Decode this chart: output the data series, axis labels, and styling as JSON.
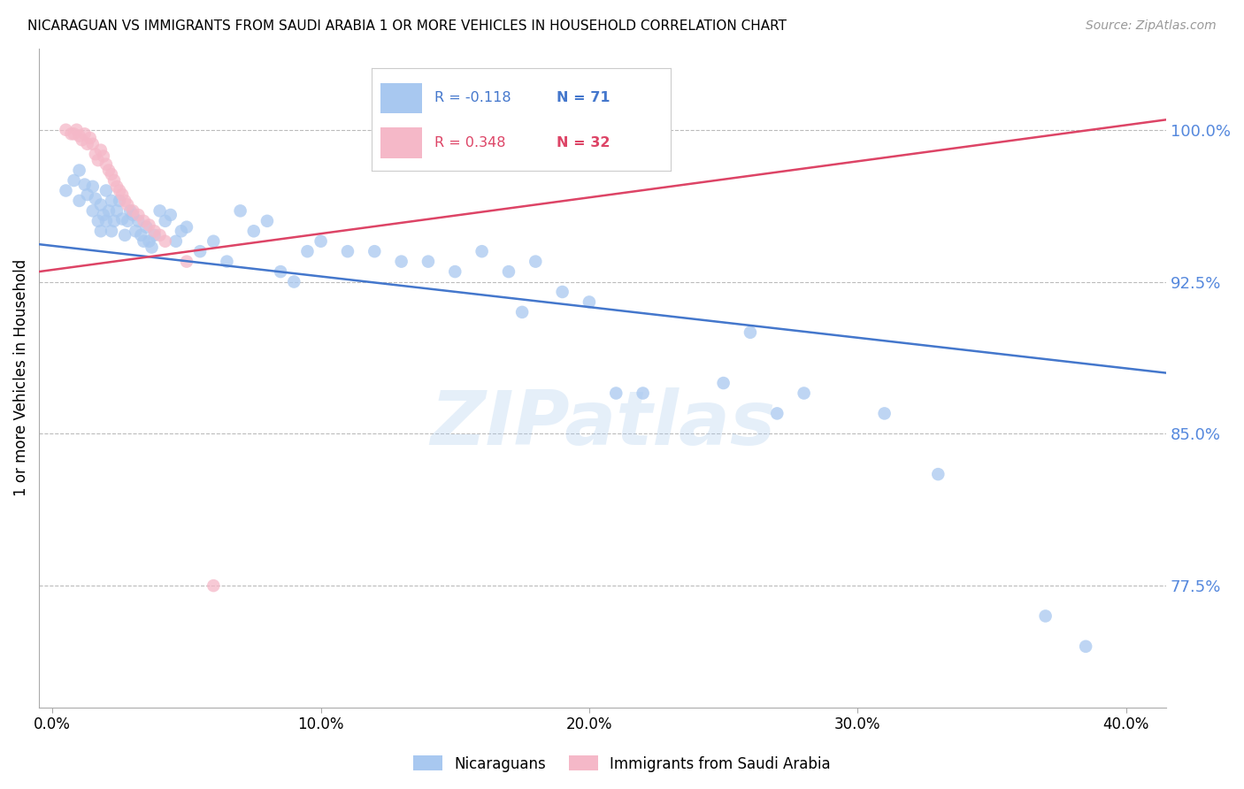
{
  "title": "NICARAGUAN VS IMMIGRANTS FROM SAUDI ARABIA 1 OR MORE VEHICLES IN HOUSEHOLD CORRELATION CHART",
  "source": "Source: ZipAtlas.com",
  "ylabel": "1 or more Vehicles in Household",
  "xlabel_ticks": [
    "0.0%",
    "10.0%",
    "20.0%",
    "30.0%",
    "40.0%"
  ],
  "xlabel_vals": [
    0.0,
    0.1,
    0.2,
    0.3,
    0.4
  ],
  "ylabel_ticks": [
    "77.5%",
    "85.0%",
    "92.5%",
    "100.0%"
  ],
  "ylabel_vals": [
    0.775,
    0.85,
    0.925,
    1.0
  ],
  "ylim": [
    0.715,
    1.04
  ],
  "xlim": [
    -0.005,
    0.415
  ],
  "blue_color": "#A8C8F0",
  "pink_color": "#F5B8C8",
  "blue_line_color": "#4477CC",
  "pink_line_color": "#DD4466",
  "R_blue": -0.118,
  "N_blue": 71,
  "R_pink": 0.348,
  "N_pink": 32,
  "legend_label_blue": "Nicaraguans",
  "legend_label_pink": "Immigrants from Saudi Arabia",
  "watermark": "ZIPatlas",
  "blue_x": [
    0.005,
    0.008,
    0.01,
    0.01,
    0.012,
    0.013,
    0.015,
    0.015,
    0.016,
    0.017,
    0.018,
    0.018,
    0.019,
    0.02,
    0.02,
    0.021,
    0.022,
    0.022,
    0.023,
    0.024,
    0.025,
    0.026,
    0.027,
    0.028,
    0.029,
    0.03,
    0.031,
    0.032,
    0.033,
    0.034,
    0.035,
    0.036,
    0.037,
    0.038,
    0.04,
    0.042,
    0.044,
    0.046,
    0.048,
    0.05,
    0.055,
    0.06,
    0.065,
    0.07,
    0.075,
    0.08,
    0.085,
    0.09,
    0.095,
    0.1,
    0.11,
    0.12,
    0.13,
    0.14,
    0.15,
    0.16,
    0.17,
    0.175,
    0.18,
    0.19,
    0.2,
    0.21,
    0.22,
    0.25,
    0.26,
    0.27,
    0.28,
    0.31,
    0.33,
    0.37,
    0.385
  ],
  "blue_y": [
    0.97,
    0.975,
    0.98,
    0.965,
    0.973,
    0.968,
    0.972,
    0.96,
    0.966,
    0.955,
    0.963,
    0.95,
    0.958,
    0.97,
    0.955,
    0.96,
    0.965,
    0.95,
    0.955,
    0.96,
    0.965,
    0.956,
    0.948,
    0.955,
    0.96,
    0.958,
    0.95,
    0.955,
    0.948,
    0.945,
    0.952,
    0.945,
    0.942,
    0.948,
    0.96,
    0.955,
    0.958,
    0.945,
    0.95,
    0.952,
    0.94,
    0.945,
    0.935,
    0.96,
    0.95,
    0.955,
    0.93,
    0.925,
    0.94,
    0.945,
    0.94,
    0.94,
    0.935,
    0.935,
    0.93,
    0.94,
    0.93,
    0.91,
    0.935,
    0.92,
    0.915,
    0.87,
    0.87,
    0.875,
    0.9,
    0.86,
    0.87,
    0.86,
    0.83,
    0.76,
    0.745
  ],
  "pink_x": [
    0.005,
    0.007,
    0.008,
    0.009,
    0.01,
    0.011,
    0.012,
    0.013,
    0.014,
    0.015,
    0.016,
    0.017,
    0.018,
    0.019,
    0.02,
    0.021,
    0.022,
    0.023,
    0.024,
    0.025,
    0.026,
    0.027,
    0.028,
    0.03,
    0.032,
    0.034,
    0.036,
    0.038,
    0.04,
    0.042,
    0.05,
    0.06
  ],
  "pink_y": [
    1.0,
    0.998,
    0.998,
    1.0,
    0.997,
    0.995,
    0.998,
    0.993,
    0.996,
    0.993,
    0.988,
    0.985,
    0.99,
    0.987,
    0.983,
    0.98,
    0.978,
    0.975,
    0.972,
    0.97,
    0.968,
    0.965,
    0.963,
    0.96,
    0.958,
    0.955,
    0.953,
    0.95,
    0.948,
    0.945,
    0.935,
    0.775
  ],
  "blue_trendline_x": [
    -0.005,
    0.415
  ],
  "blue_trendline_y": [
    0.9435,
    0.88
  ],
  "pink_trendline_x": [
    -0.005,
    0.415
  ],
  "pink_trendline_y": [
    0.93,
    1.005
  ]
}
